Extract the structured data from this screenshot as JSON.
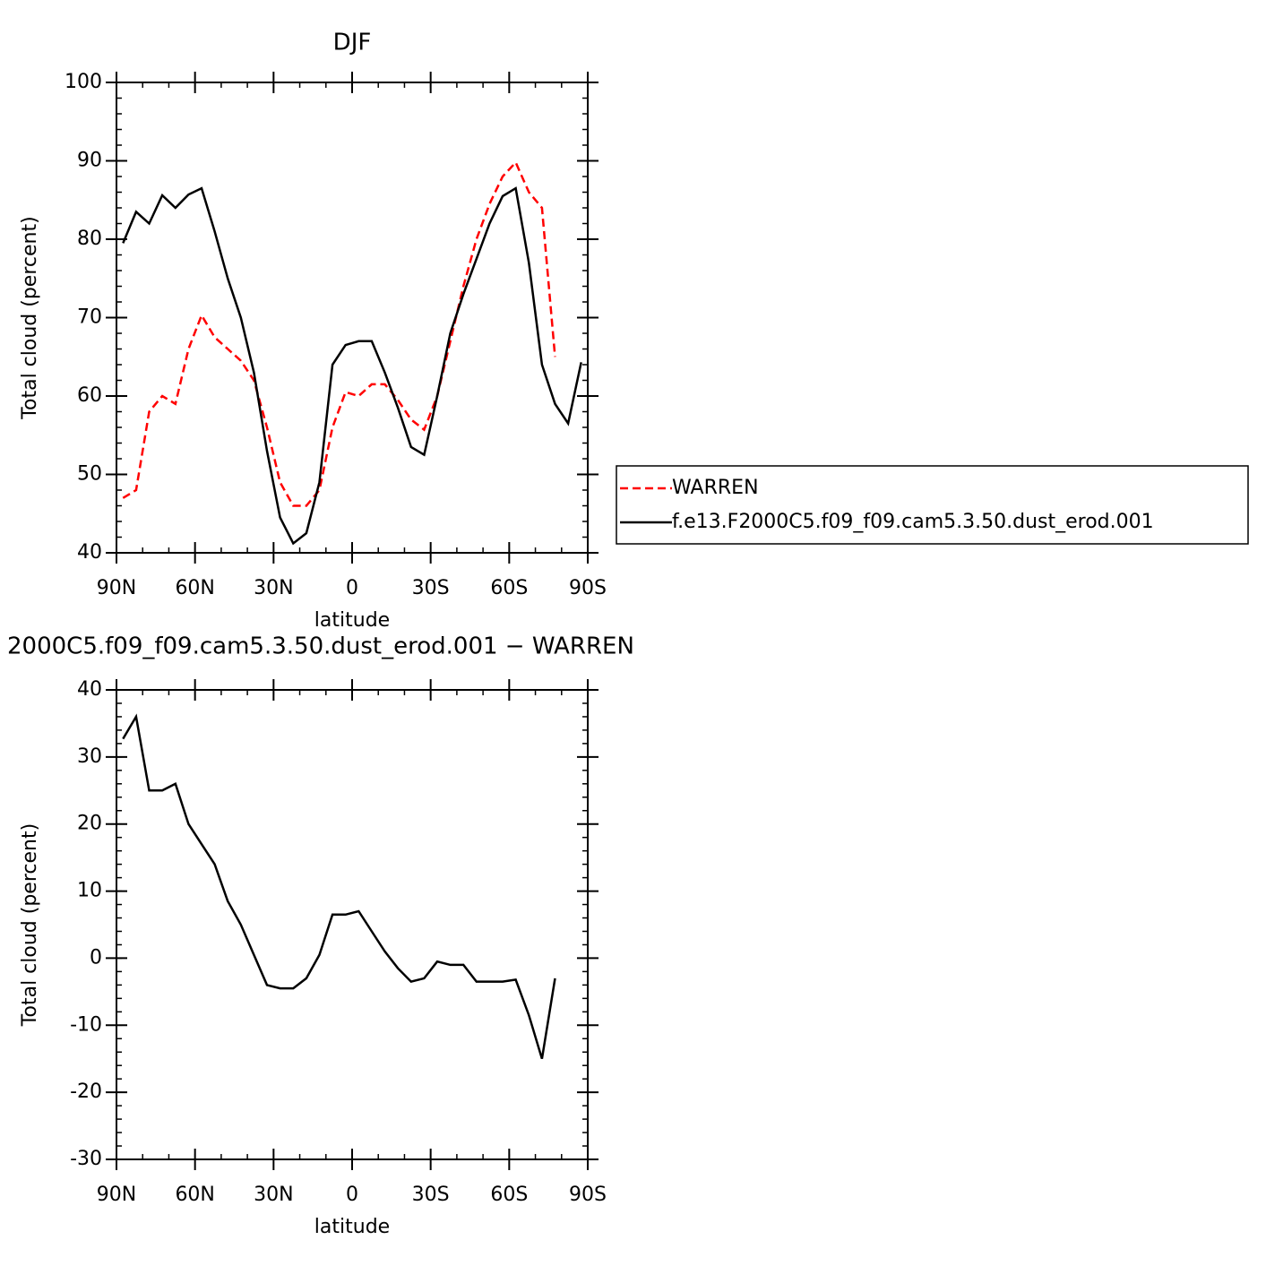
{
  "chart_data": [
    {
      "type": "line",
      "title": "DJF",
      "xlabel": "latitude",
      "ylabel": "Total cloud (percent)",
      "x": [
        87.5,
        82.5,
        77.5,
        72.5,
        67.5,
        62.5,
        57.5,
        52.5,
        47.5,
        42.5,
        37.5,
        32.5,
        27.5,
        22.5,
        17.5,
        12.5,
        7.5,
        2.5,
        -2.5,
        -7.5,
        -12.5,
        -17.5,
        -22.5,
        -27.5,
        -32.5,
        -37.5,
        -42.5,
        -47.5,
        -52.5,
        -57.5,
        -62.5,
        -67.5,
        -72.5,
        -77.5,
        -82.5,
        -87.5
      ],
      "series": [
        {
          "name": "WARREN",
          "color": "#ff0000",
          "dash": true,
          "values": [
            47,
            48,
            58,
            60,
            59,
            66,
            70.3,
            67.5,
            66,
            64.5,
            62,
            56,
            49,
            46,
            46,
            48,
            56,
            60.5,
            60,
            61.5,
            61.5,
            59.5,
            57,
            55.7,
            60,
            67,
            74,
            80,
            84.5,
            88,
            89.8,
            86,
            84,
            65,
            null,
            null
          ]
        },
        {
          "name": "f.e13.F2000C5.f09_f09.cam5.3.50.dust_erod.001",
          "color": "#000000",
          "dash": false,
          "values": [
            79.5,
            83.5,
            82,
            85.6,
            84,
            85.7,
            86.5,
            81,
            75,
            70,
            63,
            53,
            44.5,
            41.2,
            42.5,
            49,
            64,
            66.5,
            67,
            67,
            63,
            58.5,
            53.5,
            52.5,
            60,
            68,
            73,
            77.5,
            82,
            85.5,
            86.5,
            77,
            64,
            59,
            56.5,
            64.3
          ]
        }
      ],
      "xlim": [
        90,
        -90
      ],
      "xticks": [
        {
          "value": 90,
          "label": "90N"
        },
        {
          "value": 60,
          "label": "60N"
        },
        {
          "value": 30,
          "label": "30N"
        },
        0,
        {
          "value": -30,
          "label": "30S"
        },
        {
          "value": -60,
          "label": "60S"
        },
        {
          "value": -90,
          "label": "90S"
        }
      ],
      "ylim": [
        40,
        100
      ],
      "yticks": [
        40,
        50,
        60,
        70,
        80,
        90,
        100
      ],
      "legend": "right"
    },
    {
      "type": "line",
      "title": "2000C5.f09_f09.cam5.3.50.dust_erod.001 − WARREN",
      "xlabel": "latitude",
      "ylabel": "Total cloud (percent)",
      "x": [
        87.5,
        82.5,
        77.5,
        72.5,
        67.5,
        62.5,
        57.5,
        52.5,
        47.5,
        42.5,
        37.5,
        32.5,
        27.5,
        22.5,
        17.5,
        12.5,
        7.5,
        2.5,
        -2.5,
        -7.5,
        -12.5,
        -17.5,
        -22.5,
        -27.5,
        -32.5,
        -37.5,
        -42.5,
        -47.5,
        -52.5,
        -57.5,
        -62.5,
        -67.5,
        -72.5,
        -77.5,
        -82.5,
        -87.5
      ],
      "values": [
        32.7,
        36,
        25,
        25,
        26,
        20,
        17,
        14,
        8.5,
        5,
        0.5,
        -4,
        -4.5,
        -4.5,
        -3,
        0.5,
        6.5,
        6.5,
        7,
        4,
        1,
        -1.5,
        -3.5,
        -3,
        -0.5,
        -1,
        -1,
        -3.5,
        -3.5,
        -3.5,
        -3.2,
        -8.5,
        -15,
        -3,
        null,
        null
      ],
      "color": "#000000",
      "xlim": [
        90,
        -90
      ],
      "xticks": [
        {
          "value": 90,
          "label": "90N"
        },
        {
          "value": 60,
          "label": "60N"
        },
        {
          "value": 30,
          "label": "30N"
        },
        0,
        {
          "value": -30,
          "label": "30S"
        },
        {
          "value": -60,
          "label": "60S"
        },
        {
          "value": -90,
          "label": "90S"
        }
      ],
      "ylim": [
        -30,
        40
      ],
      "yticks": [
        -30,
        -20,
        -10,
        0,
        10,
        20,
        30,
        40
      ]
    }
  ]
}
